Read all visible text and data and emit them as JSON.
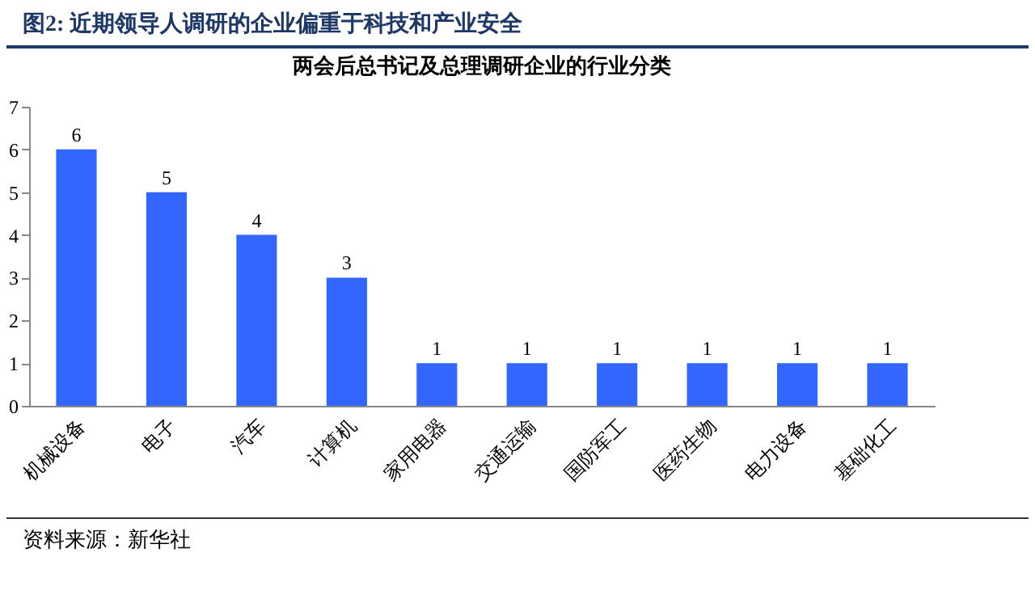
{
  "chart_data": {
    "type": "bar",
    "title": "两会后总书记及总理调研企业的行业分类",
    "annotations": [
      "图2: 近期领导人调研的企业偏重于科技和产业安全",
      "资料来源：新华社"
    ],
    "categories": [
      "机械设备",
      "电子",
      "汽车",
      "计算机",
      "家用电器",
      "交通运输",
      "国防军工",
      "医药生物",
      "电力设备",
      "基础化工"
    ],
    "values": [
      6,
      5,
      4,
      3,
      1,
      1,
      1,
      1,
      1,
      1
    ],
    "color": "#3366ff",
    "data_labels": true,
    "ylim": [
      0,
      7
    ],
    "yticks": [
      0,
      1,
      2,
      3,
      4,
      5,
      6,
      7
    ],
    "grid": false
  }
}
